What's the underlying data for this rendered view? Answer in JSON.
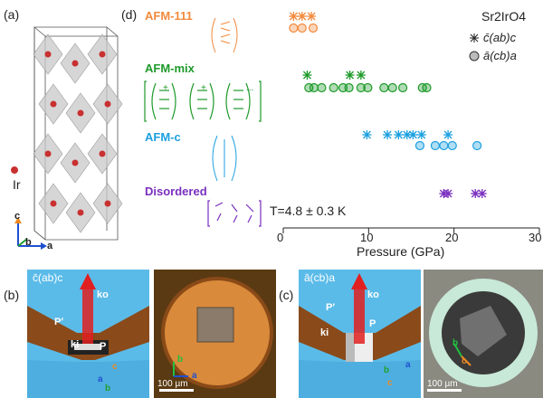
{
  "panels": {
    "a": "(a)",
    "b": "(b)",
    "c": "(c)",
    "d": "(d)"
  },
  "panel_a": {
    "atom_label": "Ir",
    "axes": {
      "c": "c",
      "b": "b",
      "a": "a"
    }
  },
  "panel_b": {
    "geometry": "c̄(ab)c",
    "beam_out": "ko",
    "beam_in": "ki",
    "pol_out": "P′",
    "pol_in": "P",
    "axes": {
      "c": "c",
      "b": "b",
      "a": "a"
    },
    "photo_axes": {
      "b": "b",
      "a": "a"
    },
    "scale_bar": "100 µm"
  },
  "panel_c": {
    "geometry": "ā(cb)a",
    "beam_out": "ko",
    "beam_in": "ki",
    "pol_out": "P′",
    "pol_in": "P",
    "axes": {
      "a": "a",
      "b": "b",
      "c": "c"
    },
    "photo_axes": {
      "b": "b",
      "c": "c"
    },
    "scale_bar": "100 µm"
  },
  "colors": {
    "afm111": "#f28a3c",
    "afmmix": "#1e9a2a",
    "afmc": "#1da0e0",
    "disordered": "#7a2fbf"
  },
  "chart_data": {
    "type": "scatter",
    "title": "Sr2IrO4",
    "xlabel": "Pressure (GPa)",
    "ylabel": "",
    "xlim": [
      0,
      30
    ],
    "xticks": [
      0,
      10,
      20,
      30
    ],
    "annotation": "T=4.8 ± 0.3 K",
    "legend": [
      {
        "marker": "asterisk",
        "label": "c̄(ab)c"
      },
      {
        "marker": "circle",
        "label": "ā(cb)a"
      }
    ],
    "rows": [
      {
        "name": "AFM-111",
        "color": "#f28a3c",
        "asterisk": [
          1.2,
          2.2,
          3.3
        ],
        "circle": [
          1.2,
          2.2,
          3.5
        ]
      },
      {
        "name": "AFM-mix",
        "color": "#1e9a2a",
        "asterisk": [
          2.8,
          7.8,
          9.1
        ],
        "circle": [
          3.0,
          3.6,
          4.5,
          5.9,
          7.0,
          7.7,
          9.1,
          9.9,
          11.8,
          12.8,
          14.0,
          16.3,
          16.8
        ]
      },
      {
        "name": "AFM-c",
        "color": "#1da0e0",
        "asterisk": [
          9.8,
          12.2,
          13.5,
          14.5,
          15.2,
          16.2,
          19.3
        ],
        "circle": [
          16.0,
          17.8,
          18.8,
          19.8,
          22.7
        ]
      },
      {
        "name": "Disordered",
        "color": "#7a2fbf",
        "asterisk": [
          18.8,
          19.3,
          22.5,
          23.3
        ],
        "circle": []
      }
    ]
  },
  "spin_sep": "+",
  "spin_ellipsis": "..."
}
